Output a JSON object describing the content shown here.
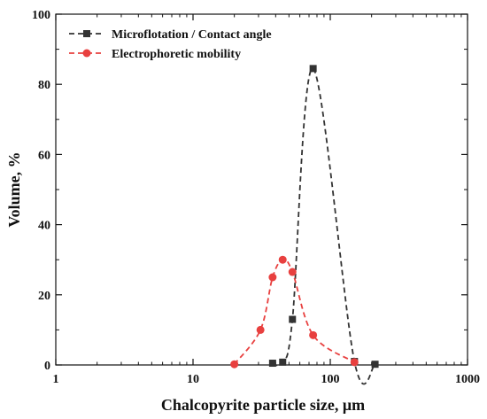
{
  "chart_data": {
    "type": "line",
    "title": "",
    "xlabel": "Chalcopyrite particle size, μm",
    "ylabel": "Volume, %",
    "xscale": "log",
    "xlim": [
      1,
      1000
    ],
    "ylim": [
      0,
      100
    ],
    "x_ticks": [
      1,
      10,
      100,
      1000
    ],
    "x_tick_labels": [
      "1",
      "10",
      "100",
      "1000"
    ],
    "y_ticks": [
      0,
      20,
      40,
      60,
      80,
      100
    ],
    "y_tick_labels": [
      "0",
      "20",
      "40",
      "60",
      "80",
      "100"
    ],
    "grid": false,
    "legend_position": "top-left",
    "series": [
      {
        "name": "Microflotation / Contact angle",
        "color": "#333333",
        "marker": "square",
        "line_style": "dashed",
        "x": [
          38,
          45,
          53,
          75,
          150,
          212
        ],
        "y": [
          0.5,
          0.8,
          13,
          84.5,
          1.0,
          0.2
        ]
      },
      {
        "name": "Electrophoretic mobility",
        "color": "#e8403f",
        "marker": "circle",
        "line_style": "dashed",
        "x": [
          20,
          31,
          38,
          45,
          53,
          75,
          150
        ],
        "y": [
          0.2,
          10,
          25,
          30,
          26.5,
          8.5,
          0.8
        ]
      }
    ]
  }
}
